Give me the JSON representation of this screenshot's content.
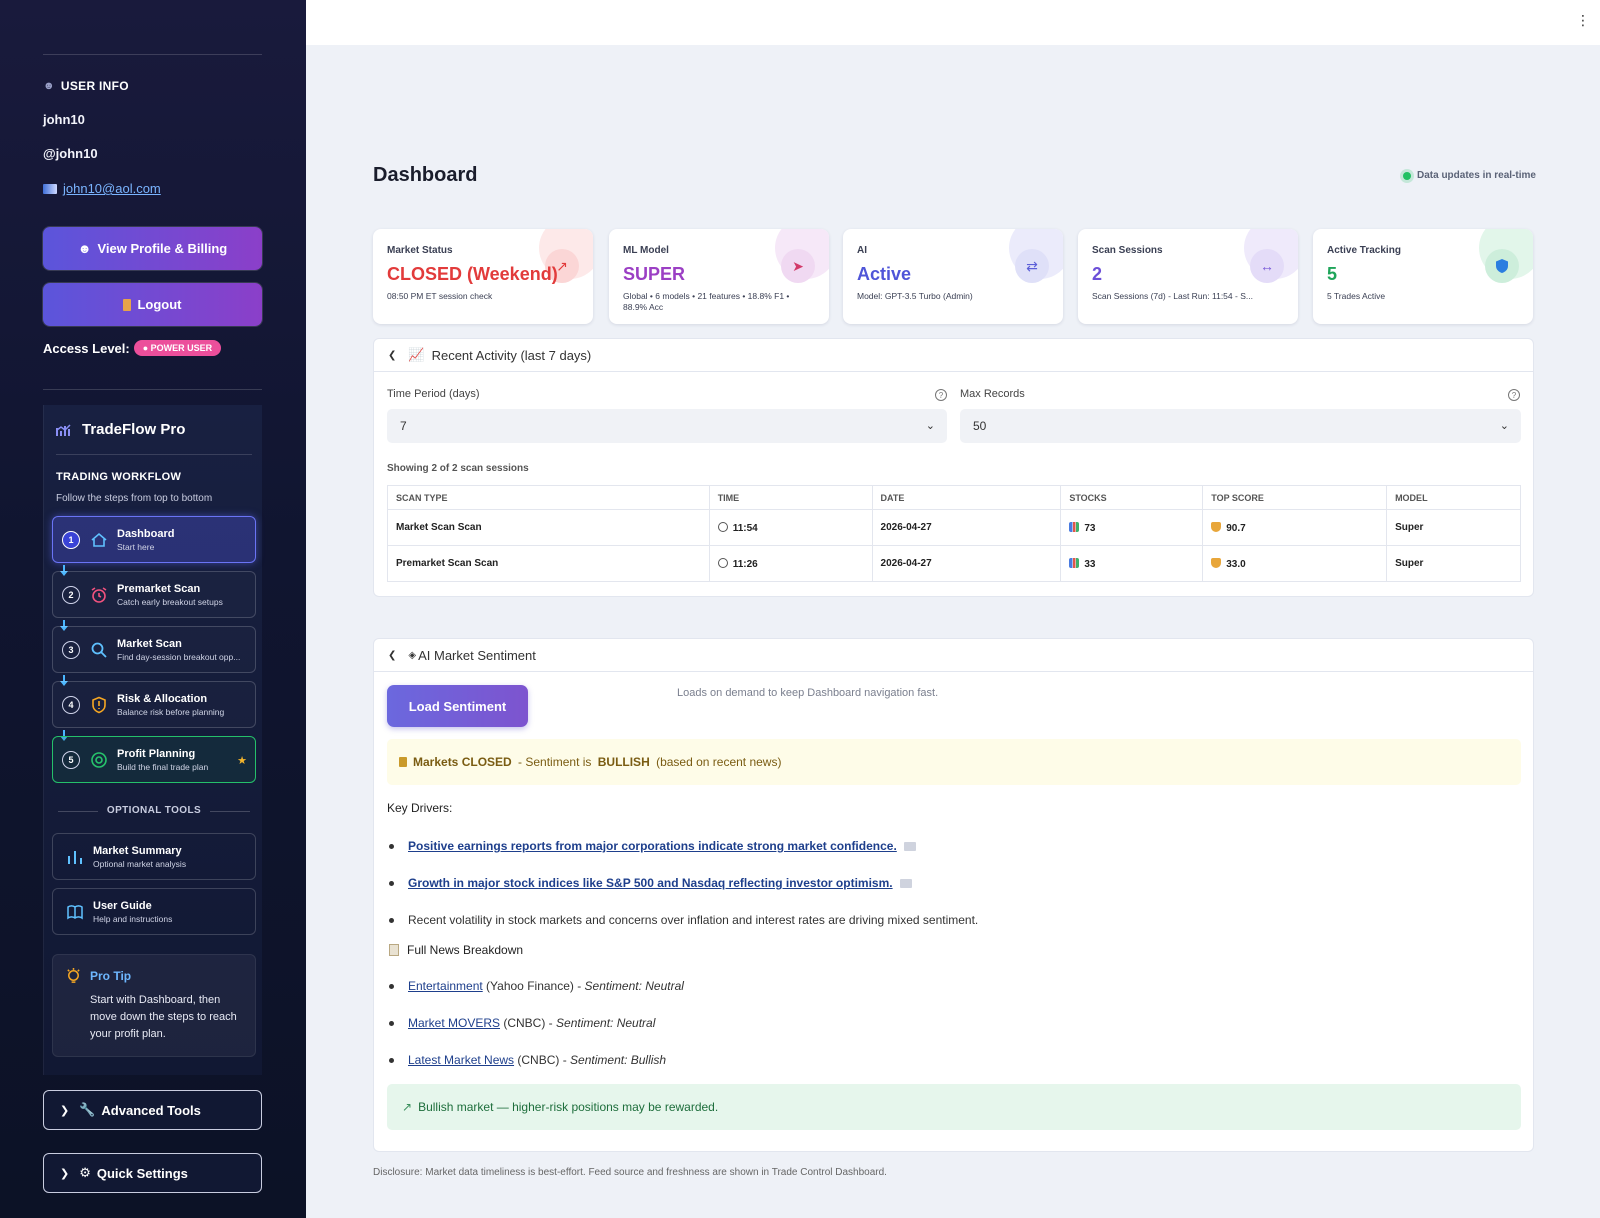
{
  "user": {
    "section_title": "USER INFO",
    "name": "john10",
    "handle": "@john10",
    "email": "john10@aol.com",
    "view_profile_label": "View Profile & Billing",
    "logout_label": "Logout",
    "access_label": "Access Level:",
    "access_badge": "POWER USER"
  },
  "workflow": {
    "brand": "TradeFlow Pro",
    "title": "TRADING WORKFLOW",
    "subtitle": "Follow the steps from top to bottom",
    "steps": [
      {
        "num": "1",
        "name": "Dashboard",
        "desc": "Start here",
        "icon": "home-icon"
      },
      {
        "num": "2",
        "name": "Premarket Scan",
        "desc": "Catch early breakout setups",
        "icon": "alarm-icon"
      },
      {
        "num": "3",
        "name": "Market Scan",
        "desc": "Find day-session breakout opp...",
        "icon": "search-icon"
      },
      {
        "num": "4",
        "name": "Risk & Allocation",
        "desc": "Balance risk before planning",
        "icon": "shield-icon"
      },
      {
        "num": "5",
        "name": "Profit Planning",
        "desc": "Build the final trade plan",
        "icon": "target-icon"
      }
    ],
    "optional_title": "OPTIONAL TOOLS",
    "tools": [
      {
        "name": "Market Summary",
        "desc": "Optional market analysis",
        "icon": "bar-chart-icon"
      },
      {
        "name": "User Guide",
        "desc": "Help and instructions",
        "icon": "book-icon"
      }
    ],
    "tip_title": "Pro Tip",
    "tip_body": "Start with Dashboard, then move down the steps to reach your profit plan."
  },
  "expanders": {
    "advanced": "Advanced Tools",
    "settings": "Quick Settings"
  },
  "header": {
    "title": "Dashboard",
    "realtime": "Data updates in real-time"
  },
  "cards": [
    {
      "label": "Market Status",
      "value": "CLOSED (Weekend)",
      "sub": "08:50 PM ET session check",
      "color": "#e23b3b",
      "icon": "arrow-up-right-icon"
    },
    {
      "label": "ML Model",
      "value": "SUPER",
      "sub": "Global • 6 models • 21 features • 18.8% F1 • 88.9% Acc",
      "color": "#9b3fc4",
      "icon": "rocket-icon"
    },
    {
      "label": "AI",
      "value": "Active",
      "sub": "Model: GPT-3.5 Turbo (Admin)",
      "color": "#4f55d8",
      "icon": "swap-icon"
    },
    {
      "label": "Scan Sessions",
      "value": "2",
      "sub": "Scan Sessions (7d) - Last Run: 11:54 - S...",
      "color": "#6c4fd8",
      "icon": "arrows-horizontal-icon"
    },
    {
      "label": "Active Tracking",
      "value": "5",
      "sub": "5 Trades Active",
      "color": "#1fa55a",
      "icon": "shield-icon"
    }
  ],
  "activity": {
    "title": "Recent Activity (last 7 days)",
    "time_label": "Time Period (days)",
    "time_value": "7",
    "max_label": "Max Records",
    "max_value": "50",
    "showing": "Showing 2 of 2 scan sessions",
    "columns": [
      "SCAN TYPE",
      "TIME",
      "DATE",
      "STOCKS",
      "TOP SCORE",
      "MODEL"
    ],
    "rows": [
      [
        "Market Scan Scan",
        "11:54",
        "2026-04-27",
        "73",
        "90.7",
        "Super"
      ],
      [
        "Premarket Scan Scan",
        "11:26",
        "2026-04-27",
        "33",
        "33.0",
        "Super"
      ]
    ]
  },
  "sentiment": {
    "title": "AI Market Sentiment",
    "load_label": "Load Sentiment",
    "hint": "Loads on demand to keep Dashboard navigation fast.",
    "alert_markets": "Markets CLOSED",
    "alert_mid": " - Sentiment is ",
    "alert_sent": "BULLISH",
    "alert_tail": " (based on recent news)",
    "key_drivers": "Key Drivers:",
    "drivers": [
      "Positive earnings reports from major corporations indicate strong market confidence.",
      "Growth in major stock indices like S&P 500 and Nasdaq reflecting investor optimism.",
      "Recent volatility in stock markets and concerns over inflation and interest rates are driving mixed sentiment."
    ],
    "breakdown_title": "Full News Breakdown",
    "news": [
      {
        "link": "Entertainment",
        "source": " (Yahoo Finance) - ",
        "sentiment": "Sentiment: Neutral"
      },
      {
        "link": "Market MOVERS",
        "source": " (CNBC) - ",
        "sentiment": "Sentiment: Neutral"
      },
      {
        "link": "Latest Market News",
        "source": " (CNBC) - ",
        "sentiment": "Sentiment: Bullish"
      }
    ],
    "bull_note": "Bullish market — higher-risk positions may be rewarded."
  },
  "disclosure": "Disclosure: Market data timeliness is best-effort. Feed source and freshness are shown in Trade Control Dashboard."
}
